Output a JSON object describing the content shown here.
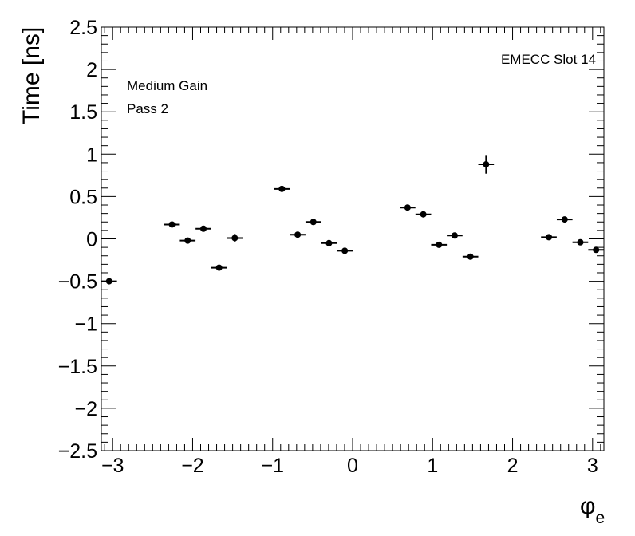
{
  "chart_data": {
    "type": "scatter",
    "title": "",
    "xlabel": "φ",
    "xlabel_sub": "e",
    "ylabel": "Time [ns]",
    "xlim": [
      -3.1416,
      3.1416
    ],
    "ylim": [
      -2.5,
      2.5
    ],
    "x_ticks": [
      -3,
      -2,
      -1,
      0,
      1,
      2,
      3
    ],
    "x_tick_labels": [
      "−3",
      "−2",
      "−1",
      "0",
      "1",
      "2",
      "3"
    ],
    "y_ticks": [
      -2.5,
      -2,
      -1.5,
      -1,
      -0.5,
      0,
      0.5,
      1,
      1.5,
      2,
      2.5
    ],
    "y_tick_labels": [
      "−2.5",
      "−2",
      "−1.5",
      "−1",
      "−0.5",
      "0",
      "0.5",
      "1",
      "1.5",
      "2",
      "2.5"
    ],
    "annotations": {
      "top_right": "EMECC Slot 14",
      "top_left_line1": "Medium Gain",
      "top_left_line2": "Pass 2"
    },
    "grid": false,
    "marker_color": "#000000",
    "series": [
      {
        "x_error": 0.098,
        "points": [
          {
            "x": -3.044,
            "y": -0.5,
            "yerr": 0.015
          },
          {
            "x": -2.258,
            "y": 0.17,
            "yerr": 0.015
          },
          {
            "x": -2.062,
            "y": -0.02,
            "yerr": 0.015
          },
          {
            "x": -1.865,
            "y": 0.12,
            "yerr": 0.015
          },
          {
            "x": -1.669,
            "y": -0.34,
            "yerr": 0.015
          },
          {
            "x": -1.473,
            "y": 0.01,
            "yerr": 0.05
          },
          {
            "x": -0.884,
            "y": 0.59,
            "yerr": 0.015
          },
          {
            "x": -0.687,
            "y": 0.05,
            "yerr": 0.015
          },
          {
            "x": -0.491,
            "y": 0.2,
            "yerr": 0.015
          },
          {
            "x": -0.295,
            "y": -0.05,
            "yerr": 0.015
          },
          {
            "x": -0.098,
            "y": -0.14,
            "yerr": 0.015
          },
          {
            "x": 0.687,
            "y": 0.37,
            "yerr": 0.015
          },
          {
            "x": 0.884,
            "y": 0.29,
            "yerr": 0.015
          },
          {
            "x": 1.08,
            "y": -0.07,
            "yerr": 0.015
          },
          {
            "x": 1.276,
            "y": 0.04,
            "yerr": 0.015
          },
          {
            "x": 1.473,
            "y": -0.21,
            "yerr": 0.015
          },
          {
            "x": 1.669,
            "y": 0.88,
            "yerr": 0.11
          },
          {
            "x": 2.454,
            "y": 0.02,
            "yerr": 0.015
          },
          {
            "x": 2.651,
            "y": 0.23,
            "yerr": 0.015
          },
          {
            "x": 2.847,
            "y": -0.04,
            "yerr": 0.015
          },
          {
            "x": 3.044,
            "y": -0.13,
            "yerr": 0.015
          }
        ]
      }
    ]
  }
}
